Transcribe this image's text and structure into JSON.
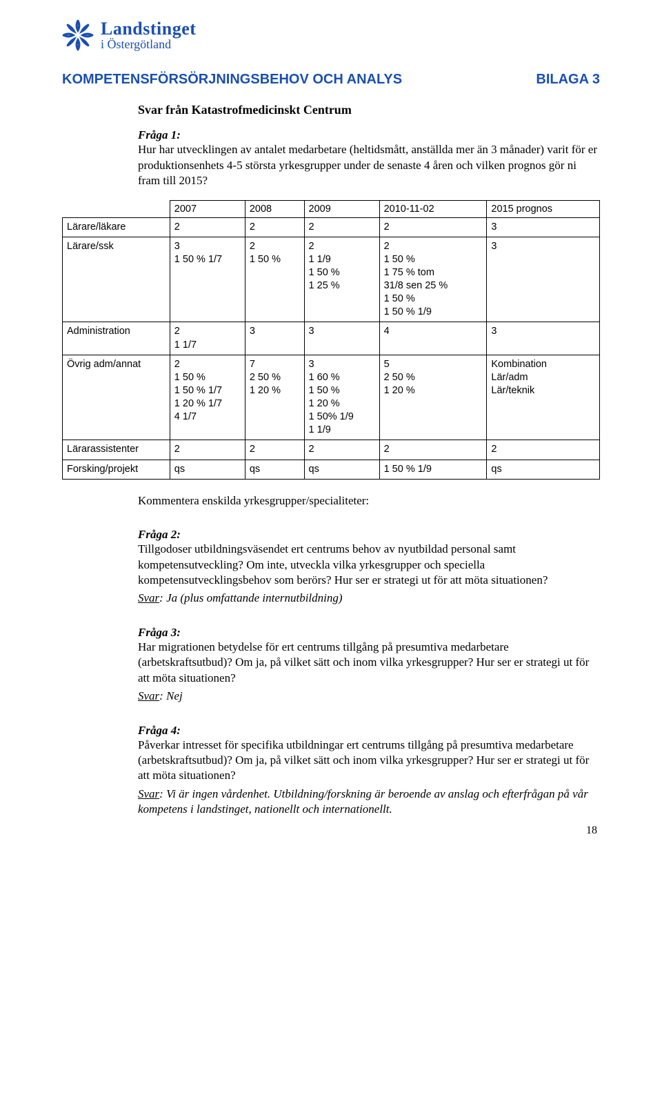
{
  "logo": {
    "top": "Landstinget",
    "bottom": "i Östergötland",
    "color": "#1a4fb0"
  },
  "heading": {
    "title": "KOMPETENSFÖRSÖRJNINGSBEHOV OCH ANALYS",
    "annex": "BILAGA 3"
  },
  "subtitle": "Svar från Katastrofmedicinskt Centrum",
  "q1": {
    "label": "Fråga 1:",
    "text": "Hur har utvecklingen av antalet medarbetare (heltidsmått, anställda mer än 3 månader) varit för er produktionsenhets 4-5 största yrkesgrupper under de senaste 4 åren och vilken prognos gör ni fram till 2015?"
  },
  "table": {
    "columns": [
      "",
      "2007",
      "2008",
      "2009",
      "2010-11-02",
      "2015 prognos"
    ],
    "col_widths": [
      "20%",
      "14%",
      "11%",
      "14%",
      "20%",
      "21%"
    ],
    "rows": [
      [
        "Lärare/läkare",
        "2",
        "2",
        "2",
        "2",
        "3"
      ],
      [
        "Lärare/ssk",
        "3\n1 50 % 1/7",
        "2\n1 50 %",
        "2\n1 1/9\n1 50 %\n1 25 %",
        "2\n1 50 %\n1 75 % tom\n31/8 sen 25 %\n1 50 %\n1 50 % 1/9",
        "3"
      ],
      [
        "Administration",
        "2\n1 1/7",
        "3",
        "3",
        "4",
        "3"
      ],
      [
        "Övrig adm/annat",
        "2\n1 50 %\n1 50 % 1/7\n1 20 % 1/7\n4 1/7",
        "7\n2 50 %\n1 20 %",
        "3\n1 60 %\n1 50 %\n1 20 %\n1 50% 1/9\n1 1/9",
        "5\n2 50 %\n1 20 %",
        "Kombination\nLär/adm\nLär/teknik"
      ],
      [
        "Lärarassistenter",
        "2",
        "2",
        "2",
        "2",
        "2"
      ],
      [
        "Forsking/projekt",
        "qs",
        "qs",
        "qs",
        "1 50 % 1/9",
        "qs"
      ]
    ]
  },
  "comment_line": "Kommentera enskilda yrkesgrupper/specialiteter:",
  "q2": {
    "label": "Fråga 2:",
    "text": "Tillgodoser utbildningsväsendet ert centrums behov av nyutbildad personal samt kompetensutveckling? Om inte, utveckla vilka yrkesgrupper och speciella kompetensutvecklingsbehov som berörs? Hur ser er strategi ut för att möta situationen?",
    "answer_label": "Svar",
    "answer": ": Ja (plus omfattande internutbildning)"
  },
  "q3": {
    "label": "Fråga 3:",
    "text": "Har migrationen betydelse för ert centrums tillgång på presumtiva medarbetare (arbetskraftsutbud)? Om ja, på vilket sätt och inom vilka yrkesgrupper? Hur ser er strategi ut för att möta situationen?",
    "answer_label": "Svar",
    "answer": ": Nej"
  },
  "q4": {
    "label": "Fråga 4:",
    "text": "Påverkar intresset för specifika utbildningar ert centrums tillgång på presumtiva medarbetare (arbetskraftsutbud)? Om ja, på vilket sätt och inom vilka yrkesgrupper? Hur ser er strategi ut för att möta situationen?",
    "answer_label": "Svar",
    "answer": ": Vi är ingen vårdenhet. Utbildning/forskning är beroende av anslag och efterfrågan på vår kompetens i landstinget, nationellt och internationellt."
  },
  "page_number": "18"
}
